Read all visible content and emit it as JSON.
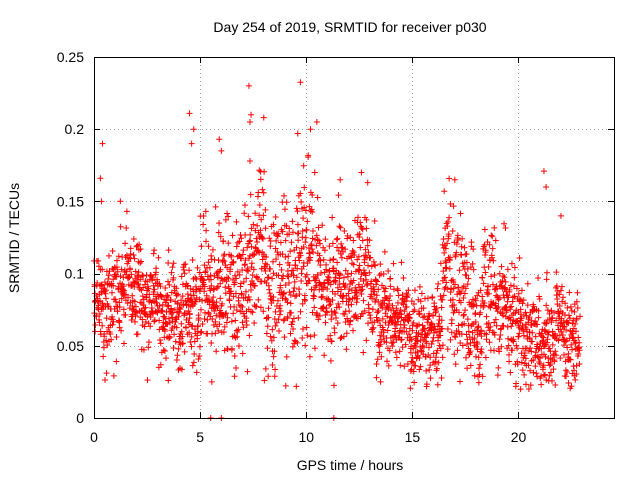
{
  "chart_data": {
    "type": "scatter",
    "title": "Day 254 of 2019, SRMTID for receiver p030",
    "xlabel": "GPS time / hours",
    "ylabel": "SRMTID / TECUs",
    "xlim": [
      0,
      24.5
    ],
    "ylim": [
      0,
      0.25
    ],
    "xticks": [
      0,
      5,
      10,
      15,
      20
    ],
    "xtick_labels": [
      "0",
      "5",
      "10",
      "15",
      "20"
    ],
    "yticks": [
      0,
      0.05,
      0.1,
      0.15,
      0.2,
      0.25
    ],
    "ytick_labels": [
      "0",
      "0.05",
      "0.1",
      "0.15",
      "0.2",
      "0.25"
    ],
    "grid": true,
    "marker": "+",
    "color": "#ff0000",
    "x_range": [
      0,
      22.9
    ],
    "n_points_approx": 2400,
    "trend": {
      "x": [
        0,
        1,
        2,
        3,
        4,
        5,
        6,
        7,
        8,
        9,
        10,
        11,
        12,
        13,
        14,
        15,
        16,
        17,
        18,
        19,
        20,
        21,
        22,
        22.9
      ],
      "y_median": [
        0.075,
        0.085,
        0.08,
        0.07,
        0.075,
        0.085,
        0.08,
        0.1,
        0.1,
        0.11,
        0.11,
        0.085,
        0.08,
        0.09,
        0.06,
        0.06,
        0.065,
        0.08,
        0.085,
        0.075,
        0.07,
        0.065,
        0.06,
        0.06
      ],
      "y_spread": [
        0.025,
        0.03,
        0.025,
        0.02,
        0.025,
        0.035,
        0.035,
        0.04,
        0.04,
        0.045,
        0.045,
        0.035,
        0.03,
        0.035,
        0.02,
        0.02,
        0.025,
        0.035,
        0.035,
        0.03,
        0.025,
        0.03,
        0.02,
        0.02
      ]
    },
    "notable_points": [
      {
        "x": 0.4,
        "y": 0.19
      },
      {
        "x": 0.3,
        "y": 0.166
      },
      {
        "x": 0.35,
        "y": 0.15
      },
      {
        "x": 4.5,
        "y": 0.211
      },
      {
        "x": 4.6,
        "y": 0.19
      },
      {
        "x": 4.7,
        "y": 0.2
      },
      {
        "x": 5.9,
        "y": 0.193
      },
      {
        "x": 6.0,
        "y": 0.185
      },
      {
        "x": 7.3,
        "y": 0.23
      },
      {
        "x": 7.4,
        "y": 0.21
      },
      {
        "x": 7.35,
        "y": 0.205
      },
      {
        "x": 7.35,
        "y": 0.178
      },
      {
        "x": 8.0,
        "y": 0.208
      },
      {
        "x": 9.6,
        "y": 0.197
      },
      {
        "x": 10.2,
        "y": 0.2
      },
      {
        "x": 10.5,
        "y": 0.205
      },
      {
        "x": 10.4,
        "y": 0.17
      },
      {
        "x": 12.6,
        "y": 0.17
      },
      {
        "x": 11.6,
        "y": 0.165
      },
      {
        "x": 17.0,
        "y": 0.165
      },
      {
        "x": 16.5,
        "y": 0.157
      },
      {
        "x": 21.2,
        "y": 0.171
      },
      {
        "x": 21.3,
        "y": 0.16
      },
      {
        "x": 22.0,
        "y": 0.14
      },
      {
        "x": 5.5,
        "y": 0.0
      },
      {
        "x": 6.0,
        "y": 0.0
      },
      {
        "x": 11.3,
        "y": 0.0
      },
      {
        "x": 5.55,
        "y": 0.025
      },
      {
        "x": 3.5,
        "y": 0.026
      },
      {
        "x": 16.2,
        "y": 0.023
      },
      {
        "x": 20.1,
        "y": 0.02
      },
      {
        "x": 13.5,
        "y": 0.025
      }
    ]
  }
}
